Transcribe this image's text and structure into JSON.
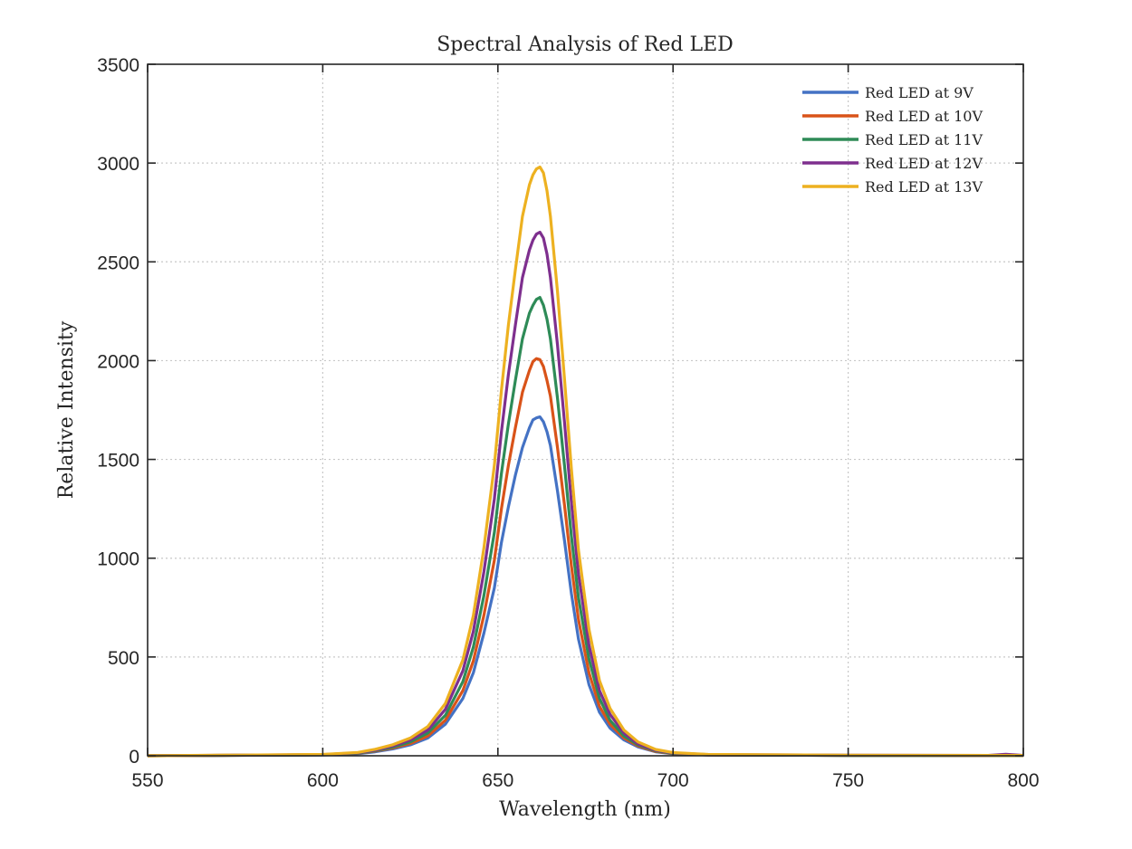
{
  "chart_data": {
    "type": "line",
    "title": "Spectral Analysis of Red LED",
    "xlabel": "Wavelength (nm)",
    "ylabel": "Relative Intensity",
    "xlim": [
      550,
      800
    ],
    "ylim": [
      0,
      3500
    ],
    "xticks": [
      550,
      600,
      650,
      700,
      750,
      800
    ],
    "yticks": [
      0,
      500,
      1000,
      1500,
      2000,
      2500,
      3000,
      3500
    ],
    "grid": true,
    "legend_position": "top-right",
    "colors": [
      "#4472c4",
      "#d95319",
      "#2e8b57",
      "#7e2f8e",
      "#edb120"
    ],
    "series": [
      {
        "name": "Red LED at 9V",
        "x": [
          550,
          600,
          610,
          615,
          620,
          625,
          630,
          635,
          640,
          643,
          646,
          649,
          651,
          653,
          655,
          657,
          659,
          660,
          661,
          662,
          663,
          664,
          665,
          667,
          669,
          671,
          673,
          676,
          679,
          682,
          686,
          690,
          695,
          700,
          710,
          750,
          800
        ],
        "y": [
          0,
          4,
          10,
          20,
          35,
          55,
          90,
          160,
          290,
          420,
          620,
          850,
          1080,
          1260,
          1420,
          1560,
          1660,
          1700,
          1710,
          1715,
          1690,
          1640,
          1570,
          1340,
          1090,
          820,
          590,
          360,
          220,
          140,
          80,
          45,
          20,
          10,
          4,
          2,
          1
        ]
      },
      {
        "name": "Red LED at 10V",
        "x": [
          550,
          600,
          610,
          615,
          620,
          625,
          630,
          635,
          640,
          643,
          646,
          649,
          651,
          653,
          655,
          657,
          659,
          660,
          661,
          662,
          663,
          664,
          665,
          667,
          669,
          671,
          673,
          676,
          679,
          682,
          686,
          690,
          695,
          700,
          710,
          750,
          800
        ],
        "y": [
          0,
          5,
          12,
          24,
          40,
          62,
          100,
          180,
          330,
          480,
          710,
          990,
          1250,
          1470,
          1660,
          1840,
          1950,
          1995,
          2010,
          2005,
          1970,
          1900,
          1820,
          1560,
          1270,
          960,
          690,
          420,
          250,
          160,
          90,
          50,
          22,
          11,
          4,
          2,
          1
        ]
      },
      {
        "name": "Red LED at 11V",
        "x": [
          550,
          600,
          610,
          615,
          620,
          625,
          630,
          635,
          640,
          643,
          646,
          649,
          651,
          653,
          655,
          657,
          659,
          660,
          661,
          662,
          663,
          664,
          665,
          667,
          669,
          671,
          673,
          676,
          679,
          682,
          686,
          690,
          695,
          700,
          710,
          750,
          800
        ],
        "y": [
          0,
          5,
          13,
          26,
          44,
          70,
          115,
          205,
          375,
          550,
          810,
          1130,
          1430,
          1680,
          1900,
          2110,
          2240,
          2280,
          2310,
          2320,
          2280,
          2210,
          2110,
          1810,
          1470,
          1110,
          800,
          490,
          290,
          180,
          100,
          55,
          25,
          12,
          5,
          2,
          1
        ]
      },
      {
        "name": "Red LED at 12V",
        "x": [
          550,
          600,
          610,
          615,
          620,
          625,
          630,
          635,
          640,
          643,
          646,
          649,
          651,
          653,
          655,
          657,
          659,
          660,
          661,
          662,
          663,
          664,
          665,
          667,
          669,
          671,
          673,
          676,
          679,
          682,
          686,
          690,
          695,
          700,
          710,
          750,
          790,
          795,
          800
        ],
        "y": [
          0,
          6,
          15,
          29,
          50,
          80,
          130,
          235,
          430,
          630,
          930,
          1300,
          1640,
          1930,
          2180,
          2420,
          2560,
          2610,
          2640,
          2650,
          2620,
          2540,
          2420,
          2080,
          1690,
          1280,
          920,
          560,
          330,
          210,
          115,
          60,
          28,
          14,
          6,
          3,
          2,
          8,
          2
        ]
      },
      {
        "name": "Red LED at 13V",
        "x": [
          550,
          600,
          610,
          615,
          620,
          625,
          630,
          635,
          640,
          643,
          646,
          649,
          651,
          653,
          655,
          657,
          659,
          660,
          661,
          662,
          663,
          664,
          665,
          667,
          669,
          671,
          673,
          676,
          679,
          682,
          686,
          690,
          695,
          700,
          710,
          750,
          800
        ],
        "y": [
          0,
          7,
          17,
          33,
          56,
          90,
          148,
          265,
          485,
          710,
          1050,
          1470,
          1850,
          2180,
          2460,
          2730,
          2890,
          2940,
          2970,
          2980,
          2950,
          2860,
          2730,
          2350,
          1910,
          1450,
          1040,
          640,
          380,
          240,
          130,
          70,
          32,
          16,
          7,
          3,
          2
        ]
      }
    ]
  }
}
